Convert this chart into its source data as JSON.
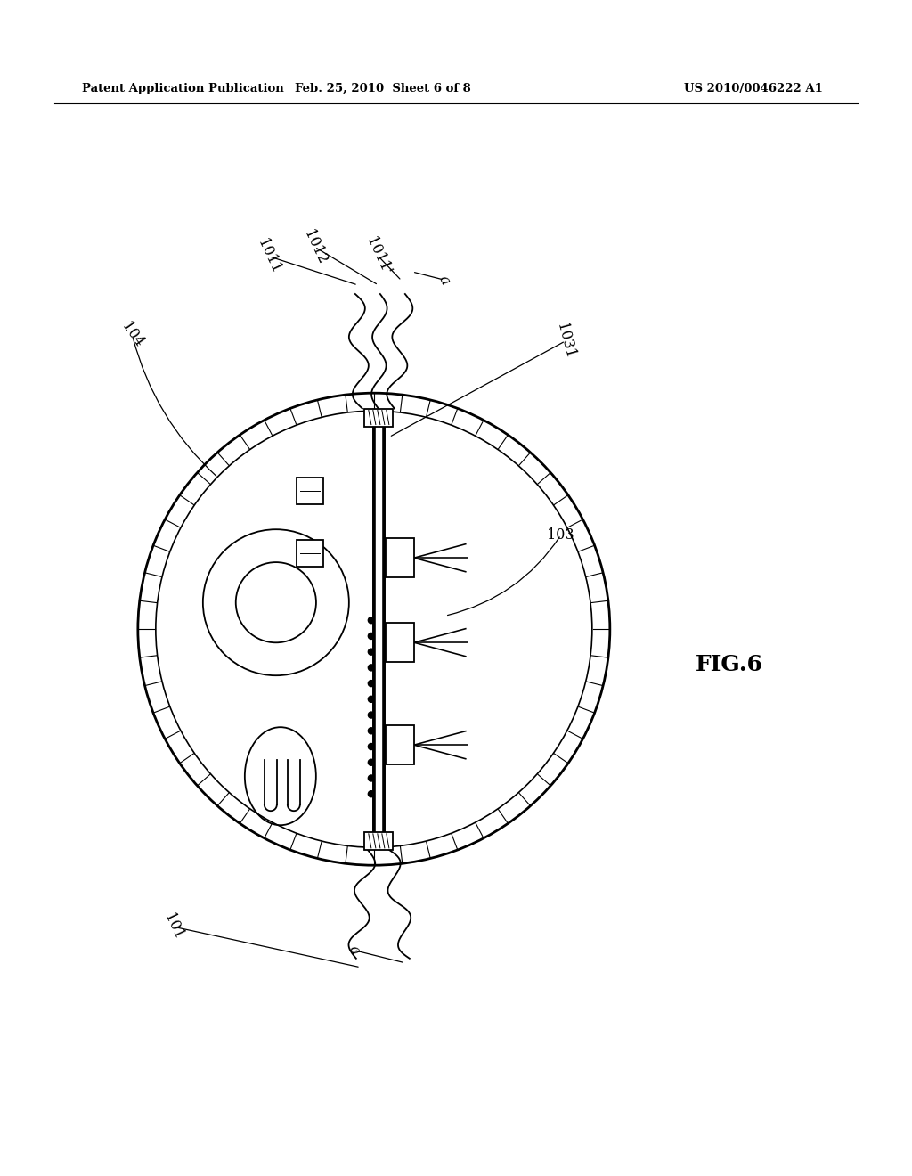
{
  "background_color": "#ffffff",
  "header_left": "Patent Application Publication",
  "header_center": "Feb. 25, 2010  Sheet 6 of 8",
  "header_right": "US 2010/0046222 A1",
  "fig_label": "FIG.6"
}
